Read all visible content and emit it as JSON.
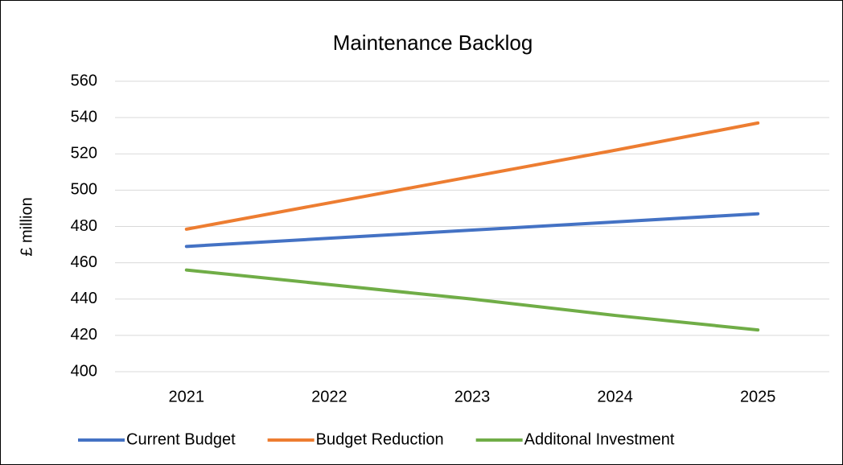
{
  "chart_data": {
    "type": "line",
    "title": "Maintenance Backlog",
    "y_label": "£ million",
    "categories": [
      "2021",
      "2022",
      "2023",
      "2024",
      "2025"
    ],
    "series": [
      {
        "name": "Current Budget",
        "color": "#4472c4",
        "values": [
          469,
          473.5,
          478,
          482.5,
          487
        ]
      },
      {
        "name": "Budget Reduction",
        "color": "#ed7d31",
        "values": [
          478.5,
          493,
          507.5,
          522,
          537
        ]
      },
      {
        "name": "Additonal Investment",
        "color": "#70ad47",
        "values": [
          456,
          448,
          440,
          431,
          423
        ]
      }
    ],
    "ylim": [
      400,
      560
    ],
    "yticks": [
      400,
      420,
      440,
      460,
      480,
      500,
      520,
      540,
      560
    ],
    "grid": true,
    "legend": "bottom"
  }
}
